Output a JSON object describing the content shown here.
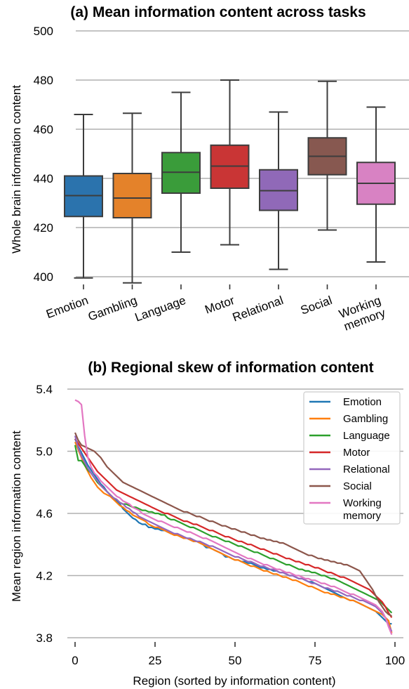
{
  "chart_data": [
    {
      "type": "box",
      "title": "(a) Mean information content across tasks",
      "xlabel": "",
      "ylabel": "Whole brain information content",
      "ylim": [
        400,
        500
      ],
      "yticks": [
        400,
        420,
        440,
        460,
        480,
        500
      ],
      "grid": "horizontal",
      "categories": [
        "Emotion",
        "Gambling",
        "Language",
        "Motor",
        "Relational",
        "Social",
        "Working memory"
      ],
      "category_lines": [
        [
          "Emotion"
        ],
        [
          "Gambling"
        ],
        [
          "Language"
        ],
        [
          "Motor"
        ],
        [
          "Relational"
        ],
        [
          "Social"
        ],
        [
          "Working",
          "memory"
        ]
      ],
      "boxes": [
        {
          "whisker_low": 399.5,
          "q1": 424.5,
          "median": 433,
          "q3": 441,
          "whisker_high": 466
        },
        {
          "whisker_low": 397.5,
          "q1": 424,
          "median": 432,
          "q3": 442,
          "whisker_high": 466.5
        },
        {
          "whisker_low": 410,
          "q1": 434,
          "median": 442.5,
          "q3": 450.5,
          "whisker_high": 475
        },
        {
          "whisker_low": 413,
          "q1": 436,
          "median": 445,
          "q3": 453.5,
          "whisker_high": 480
        },
        {
          "whisker_low": 403,
          "q1": 427,
          "median": 435,
          "q3": 443.5,
          "whisker_high": 467
        },
        {
          "whisker_low": 419,
          "q1": 441.5,
          "median": 449,
          "q3": 456.5,
          "whisker_high": 479.5
        },
        {
          "whisker_low": 406,
          "q1": 429.5,
          "median": 438,
          "q3": 446.5,
          "whisker_high": 469
        }
      ],
      "colors": [
        "#2b73ad",
        "#e4822a",
        "#3a9c3a",
        "#c93535",
        "#9069b8",
        "#875850",
        "#d882c3"
      ]
    },
    {
      "type": "line",
      "title": "(b) Regional skew of information content",
      "xlabel": "Region (sorted by information content)",
      "ylabel": "Mean region information content",
      "xlim": [
        0,
        100
      ],
      "ylim": [
        3.8,
        5.4
      ],
      "xticks": [
        0,
        25,
        50,
        75,
        100
      ],
      "yticks": [
        3.8,
        4.2,
        4.6,
        5.0,
        5.4
      ],
      "grid": "horizontal",
      "legend": "top-right",
      "x": [
        0,
        1,
        2,
        3,
        4,
        5,
        6,
        7,
        8,
        9,
        10,
        11,
        12,
        13,
        14,
        15,
        16,
        17,
        18,
        19,
        20,
        21,
        22,
        23,
        24,
        25,
        26,
        27,
        28,
        29,
        30,
        31,
        32,
        33,
        34,
        35,
        36,
        37,
        38,
        39,
        40,
        41,
        42,
        43,
        44,
        45,
        46,
        47,
        48,
        49,
        50,
        51,
        52,
        53,
        54,
        55,
        56,
        57,
        58,
        59,
        60,
        61,
        62,
        63,
        64,
        65,
        66,
        67,
        68,
        69,
        70,
        71,
        72,
        73,
        74,
        75,
        76,
        77,
        78,
        79,
        80,
        81,
        82,
        83,
        84,
        85,
        86,
        87,
        88,
        89,
        90,
        91,
        92,
        93,
        94,
        95,
        96,
        97,
        98,
        99
      ],
      "series": [
        {
          "name": "Emotion",
          "color": "#1f77b4",
          "values": [
            5.08,
            5.03,
            4.99,
            4.95,
            4.91,
            4.88,
            4.85,
            4.82,
            4.79,
            4.77,
            4.74,
            4.72,
            4.7,
            4.68,
            4.66,
            4.63,
            4.61,
            4.59,
            4.57,
            4.56,
            4.54,
            4.53,
            4.53,
            4.51,
            4.51,
            4.5,
            4.5,
            4.49,
            4.49,
            4.48,
            4.47,
            4.47,
            4.46,
            4.45,
            4.44,
            4.44,
            4.43,
            4.42,
            4.42,
            4.41,
            4.4,
            4.38,
            4.38,
            4.37,
            4.36,
            4.35,
            4.34,
            4.32,
            4.32,
            4.31,
            4.3,
            4.3,
            4.29,
            4.29,
            4.28,
            4.28,
            4.27,
            4.26,
            4.25,
            4.25,
            4.24,
            4.24,
            4.23,
            4.23,
            4.22,
            4.22,
            4.21,
            4.2,
            4.2,
            4.19,
            4.18,
            4.18,
            4.17,
            4.16,
            4.16,
            4.15,
            4.14,
            4.13,
            4.12,
            4.11,
            4.1,
            4.09,
            4.08,
            4.07,
            4.06,
            4.05,
            4.04,
            4.04,
            4.03,
            4.02,
            4.01,
            4.0,
            3.99,
            3.98,
            3.97,
            3.95,
            3.93,
            3.91,
            3.89,
            3.89
          ]
        },
        {
          "name": "Gambling",
          "color": "#ff7f0e",
          "values": [
            5.06,
            5.01,
            4.96,
            4.91,
            4.87,
            4.83,
            4.8,
            4.77,
            4.75,
            4.73,
            4.72,
            4.71,
            4.69,
            4.67,
            4.65,
            4.64,
            4.62,
            4.61,
            4.59,
            4.58,
            4.57,
            4.56,
            4.55,
            4.53,
            4.52,
            4.51,
            4.51,
            4.5,
            4.49,
            4.48,
            4.47,
            4.46,
            4.46,
            4.45,
            4.44,
            4.44,
            4.43,
            4.42,
            4.42,
            4.41,
            4.4,
            4.39,
            4.38,
            4.37,
            4.36,
            4.35,
            4.34,
            4.33,
            4.32,
            4.31,
            4.3,
            4.3,
            4.29,
            4.28,
            4.27,
            4.26,
            4.26,
            4.25,
            4.24,
            4.23,
            4.23,
            4.22,
            4.21,
            4.21,
            4.2,
            4.19,
            4.19,
            4.18,
            4.17,
            4.17,
            4.16,
            4.15,
            4.14,
            4.13,
            4.13,
            4.12,
            4.11,
            4.1,
            4.09,
            4.09,
            4.08,
            4.08,
            4.07,
            4.06,
            4.06,
            4.05,
            4.04,
            4.04,
            4.03,
            4.02,
            4.01,
            4.0,
            3.99,
            3.98,
            3.97,
            3.96,
            3.95,
            3.93,
            3.91,
            3.83
          ]
        },
        {
          "name": "Language",
          "color": "#2ca02c",
          "values": [
            5.04,
            4.94,
            4.94,
            4.91,
            4.88,
            4.86,
            4.83,
            4.8,
            4.78,
            4.76,
            4.74,
            4.72,
            4.7,
            4.69,
            4.67,
            4.66,
            4.66,
            4.65,
            4.64,
            4.64,
            4.63,
            4.62,
            4.62,
            4.61,
            4.61,
            4.6,
            4.6,
            4.59,
            4.59,
            4.57,
            4.56,
            4.56,
            4.55,
            4.54,
            4.53,
            4.52,
            4.51,
            4.51,
            4.5,
            4.49,
            4.48,
            4.47,
            4.46,
            4.45,
            4.45,
            4.44,
            4.43,
            4.42,
            4.42,
            4.41,
            4.4,
            4.39,
            4.39,
            4.38,
            4.37,
            4.36,
            4.35,
            4.35,
            4.34,
            4.33,
            4.32,
            4.31,
            4.31,
            4.3,
            4.29,
            4.28,
            4.27,
            4.27,
            4.26,
            4.25,
            4.24,
            4.24,
            4.23,
            4.23,
            4.22,
            4.22,
            4.21,
            4.2,
            4.2,
            4.19,
            4.18,
            4.18,
            4.17,
            4.16,
            4.15,
            4.14,
            4.13,
            4.12,
            4.11,
            4.1,
            4.09,
            4.08,
            4.07,
            4.06,
            4.05,
            4.04,
            4.02,
            4.0,
            3.98,
            3.96
          ]
        },
        {
          "name": "Motor",
          "color": "#d62728",
          "values": [
            5.08,
            5.05,
            5.02,
            4.99,
            4.96,
            4.93,
            4.9,
            4.87,
            4.85,
            4.83,
            4.81,
            4.79,
            4.77,
            4.75,
            4.74,
            4.73,
            4.72,
            4.71,
            4.7,
            4.69,
            4.68,
            4.67,
            4.66,
            4.65,
            4.64,
            4.63,
            4.62,
            4.61,
            4.6,
            4.6,
            4.59,
            4.58,
            4.57,
            4.56,
            4.55,
            4.55,
            4.54,
            4.53,
            4.53,
            4.52,
            4.51,
            4.5,
            4.49,
            4.49,
            4.48,
            4.47,
            4.46,
            4.45,
            4.45,
            4.44,
            4.43,
            4.42,
            4.42,
            4.41,
            4.4,
            4.4,
            4.39,
            4.38,
            4.37,
            4.37,
            4.36,
            4.35,
            4.34,
            4.34,
            4.33,
            4.32,
            4.31,
            4.31,
            4.3,
            4.29,
            4.29,
            4.28,
            4.27,
            4.27,
            4.26,
            4.25,
            4.25,
            4.24,
            4.23,
            4.22,
            4.22,
            4.21,
            4.2,
            4.19,
            4.19,
            4.18,
            4.17,
            4.16,
            4.15,
            4.14,
            4.13,
            4.12,
            4.11,
            4.09,
            4.07,
            4.05,
            4.03,
            4.0,
            3.96,
            3.93
          ]
        },
        {
          "name": "Relational",
          "color": "#9467bd",
          "values": [
            5.1,
            5.02,
            4.97,
            4.93,
            4.89,
            4.86,
            4.83,
            4.81,
            4.78,
            4.76,
            4.74,
            4.72,
            4.7,
            4.69,
            4.67,
            4.66,
            4.64,
            4.63,
            4.61,
            4.6,
            4.58,
            4.57,
            4.56,
            4.55,
            4.54,
            4.53,
            4.52,
            4.51,
            4.5,
            4.49,
            4.48,
            4.47,
            4.47,
            4.46,
            4.45,
            4.44,
            4.44,
            4.43,
            4.42,
            4.42,
            4.41,
            4.4,
            4.39,
            4.39,
            4.38,
            4.37,
            4.36,
            4.35,
            4.34,
            4.33,
            4.32,
            4.32,
            4.31,
            4.3,
            4.29,
            4.29,
            4.28,
            4.27,
            4.26,
            4.26,
            4.25,
            4.24,
            4.24,
            4.23,
            4.22,
            4.22,
            4.21,
            4.2,
            4.2,
            4.19,
            4.18,
            4.18,
            4.17,
            4.16,
            4.15,
            4.15,
            4.14,
            4.13,
            4.12,
            4.12,
            4.11,
            4.1,
            4.1,
            4.09,
            4.08,
            4.07,
            4.07,
            4.06,
            4.05,
            4.04,
            4.04,
            4.03,
            4.02,
            4.01,
            4.0,
            3.98,
            3.96,
            3.93,
            3.88,
            3.84
          ]
        },
        {
          "name": "Social",
          "color": "#8c564b",
          "values": [
            5.12,
            5.07,
            5.04,
            5.03,
            5.02,
            5.01,
            5.0,
            4.98,
            4.96,
            4.93,
            4.9,
            4.88,
            4.86,
            4.84,
            4.82,
            4.8,
            4.79,
            4.78,
            4.77,
            4.76,
            4.75,
            4.74,
            4.73,
            4.72,
            4.71,
            4.7,
            4.69,
            4.68,
            4.67,
            4.66,
            4.65,
            4.64,
            4.63,
            4.62,
            4.61,
            4.61,
            4.6,
            4.59,
            4.58,
            4.58,
            4.57,
            4.56,
            4.55,
            4.55,
            4.54,
            4.53,
            4.52,
            4.52,
            4.51,
            4.5,
            4.5,
            4.49,
            4.48,
            4.48,
            4.47,
            4.46,
            4.46,
            4.45,
            4.44,
            4.44,
            4.43,
            4.43,
            4.42,
            4.42,
            4.41,
            4.41,
            4.4,
            4.39,
            4.38,
            4.37,
            4.36,
            4.35,
            4.34,
            4.33,
            4.33,
            4.32,
            4.31,
            4.31,
            4.3,
            4.3,
            4.29,
            4.29,
            4.28,
            4.28,
            4.27,
            4.27,
            4.26,
            4.25,
            4.24,
            4.23,
            4.2,
            4.17,
            4.14,
            4.11,
            4.07,
            4.03,
            4.0,
            3.97,
            3.95,
            3.94
          ]
        },
        {
          "name": "Working memory",
          "color": "#e377c2",
          "values": [
            5.33,
            5.32,
            5.3,
            5.1,
            4.96,
            4.9,
            4.86,
            4.84,
            4.81,
            4.79,
            4.77,
            4.75,
            4.73,
            4.71,
            4.7,
            4.68,
            4.67,
            4.66,
            4.64,
            4.63,
            4.62,
            4.6,
            4.59,
            4.58,
            4.57,
            4.56,
            4.55,
            4.55,
            4.54,
            4.53,
            4.52,
            4.51,
            4.51,
            4.5,
            4.49,
            4.48,
            4.48,
            4.47,
            4.46,
            4.45,
            4.44,
            4.44,
            4.43,
            4.42,
            4.41,
            4.4,
            4.39,
            4.38,
            4.37,
            4.36,
            4.35,
            4.34,
            4.33,
            4.32,
            4.31,
            4.31,
            4.3,
            4.29,
            4.28,
            4.27,
            4.27,
            4.26,
            4.25,
            4.24,
            4.24,
            4.23,
            4.22,
            4.22,
            4.21,
            4.2,
            4.2,
            4.19,
            4.18,
            4.18,
            4.17,
            4.17,
            4.16,
            4.15,
            4.15,
            4.14,
            4.13,
            4.13,
            4.12,
            4.11,
            4.1,
            4.09,
            4.08,
            4.08,
            4.07,
            4.06,
            4.05,
            4.04,
            4.03,
            4.02,
            4.01,
            3.99,
            3.97,
            3.93,
            3.87,
            3.82
          ]
        }
      ],
      "legend_lines": [
        [
          "Emotion"
        ],
        [
          "Gambling"
        ],
        [
          "Language"
        ],
        [
          "Motor"
        ],
        [
          "Relational"
        ],
        [
          "Social"
        ],
        [
          "Working",
          "memory"
        ]
      ]
    }
  ]
}
